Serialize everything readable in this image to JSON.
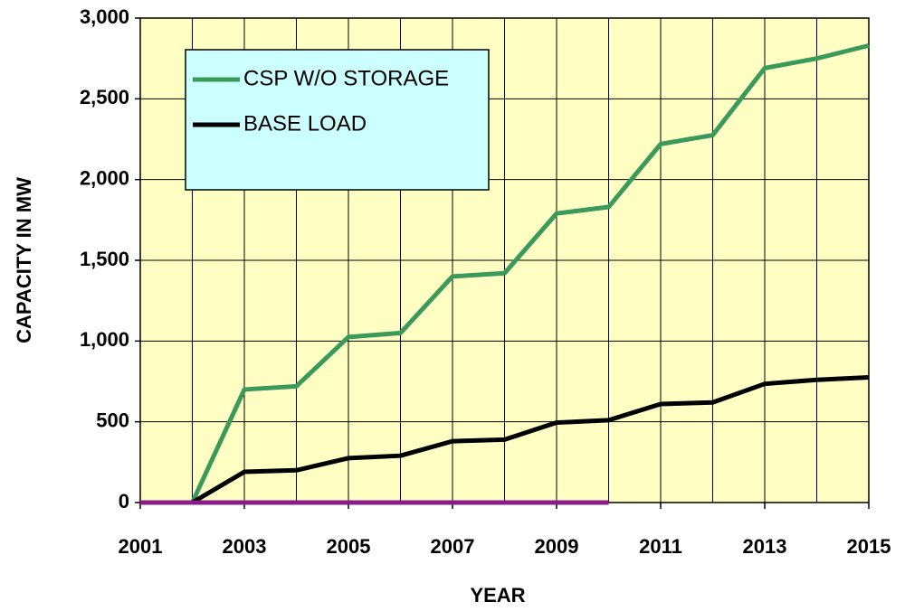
{
  "chart_data": {
    "type": "line",
    "xlabel": "YEAR",
    "ylabel": "CAPACITY IN MW",
    "x": [
      2001,
      2002,
      2003,
      2004,
      2005,
      2006,
      2007,
      2008,
      2009,
      2010,
      2011,
      2012,
      2013,
      2014,
      2015
    ],
    "series": [
      {
        "name": "CSP W/O STORAGE",
        "color": "#3a9a5b",
        "values": [
          0,
          0,
          700,
          720,
          1025,
          1050,
          1400,
          1420,
          1790,
          1830,
          2220,
          2275,
          2690,
          2750,
          2830
        ]
      },
      {
        "name": "BASE LOAD",
        "color": "#000000",
        "values": [
          0,
          0,
          190,
          200,
          275,
          290,
          380,
          390,
          495,
          510,
          610,
          620,
          735,
          760,
          775
        ]
      },
      {
        "color": "#8b1a8b",
        "values": [
          0,
          0,
          0,
          0,
          0,
          0,
          0,
          0,
          0,
          0,
          null,
          null,
          null,
          null,
          null
        ]
      }
    ],
    "xlim": [
      2001,
      2015
    ],
    "xticks": [
      2001,
      2003,
      2005,
      2007,
      2009,
      2011,
      2013,
      2015
    ],
    "ylim": [
      0,
      3000
    ],
    "yticks": [
      0,
      500,
      {
        "value": 1000,
        "label": "1,000"
      },
      {
        "value": 1500,
        "label": "1,500"
      },
      {
        "value": 2000,
        "label": "2,000"
      },
      {
        "value": 2500,
        "label": "2,500"
      },
      {
        "value": 3000,
        "label": "3,000"
      }
    ],
    "grid": true,
    "legend": "upper left",
    "background": "#ffffc4",
    "legend_background": "#ccffff"
  }
}
